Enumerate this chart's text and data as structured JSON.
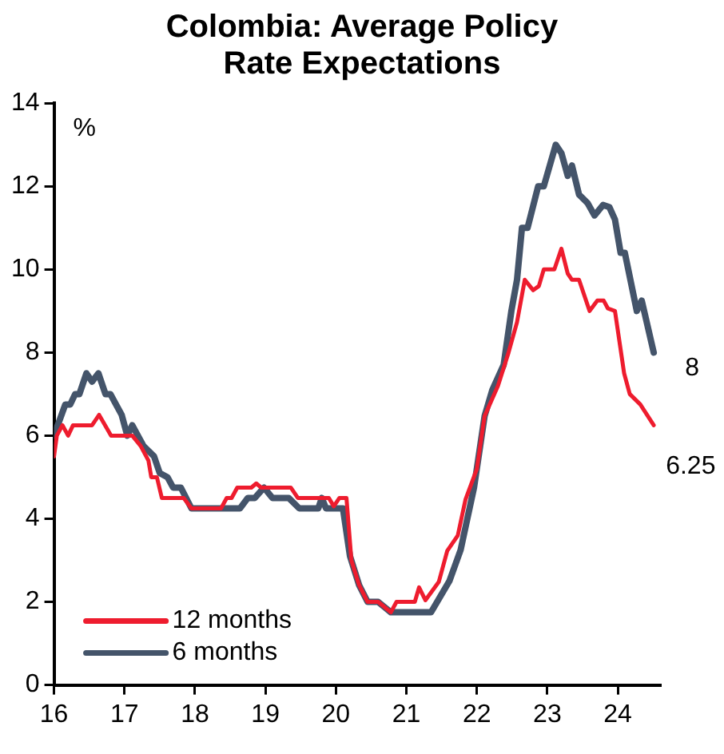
{
  "chart_data": {
    "type": "line",
    "title": "Colombia: Average Policy Rate Expectations",
    "ylabel": "%",
    "xlim": [
      16,
      24.6
    ],
    "xticks": [
      16,
      17,
      18,
      19,
      20,
      21,
      22,
      23,
      24
    ],
    "ylim": [
      0,
      14
    ],
    "yticks": [
      0,
      2,
      4,
      6,
      8,
      10,
      12,
      14
    ],
    "grid": false,
    "legend": "bottom left",
    "marker": "none",
    "line_style": "solid",
    "annotations": [
      {
        "text": "8",
        "x": 24.5,
        "y": 8
      },
      {
        "text": "6.25",
        "x": 24.5,
        "y": 6.25
      }
    ],
    "series": [
      {
        "name": "12 months",
        "color": "#ee1c2e",
        "x": [
          16.0,
          16.04,
          16.12,
          16.2,
          16.27,
          16.54,
          16.64,
          16.81,
          17.11,
          17.23,
          17.34,
          17.38,
          17.46,
          17.53,
          17.84,
          17.95,
          18.37,
          18.45,
          18.52,
          18.6,
          18.8,
          18.87,
          18.94,
          19.36,
          19.46,
          19.9,
          19.97,
          20.05,
          20.15,
          20.22,
          20.33,
          20.45,
          20.6,
          20.78,
          20.86,
          21.12,
          21.18,
          21.27,
          21.46,
          21.58,
          21.73,
          21.84,
          22.0,
          22.11,
          22.3,
          22.45,
          22.57,
          22.68,
          22.8,
          22.88,
          22.95,
          23.1,
          23.2,
          23.29,
          23.35,
          23.45,
          23.6,
          23.71,
          23.8,
          23.86,
          23.96,
          24.09,
          24.17,
          24.32,
          24.51
        ],
        "values": [
          5.5,
          6.0,
          6.25,
          6.0,
          6.25,
          6.25,
          6.5,
          6.0,
          6.0,
          5.75,
          5.4,
          5.0,
          5.0,
          4.5,
          4.5,
          4.25,
          4.25,
          4.5,
          4.5,
          4.75,
          4.75,
          4.85,
          4.75,
          4.75,
          4.5,
          4.5,
          4.3,
          4.5,
          4.5,
          3.0,
          2.4,
          2.0,
          2.0,
          1.75,
          2.0,
          2.0,
          2.35,
          2.04,
          2.48,
          3.23,
          3.6,
          4.47,
          5.2,
          6.47,
          7.2,
          8.0,
          8.73,
          9.75,
          9.5,
          9.6,
          10.0,
          10.0,
          10.5,
          9.9,
          9.75,
          9.75,
          9.0,
          9.25,
          9.25,
          9.06,
          9.0,
          7.5,
          7.0,
          6.75,
          6.25
        ]
      },
      {
        "name": "6 months",
        "color": "#44546a",
        "x": [
          16.0,
          16.16,
          16.23,
          16.3,
          16.36,
          16.46,
          16.54,
          16.63,
          16.73,
          16.8,
          16.96,
          17.04,
          17.11,
          17.27,
          17.42,
          17.5,
          17.61,
          17.69,
          17.8,
          17.95,
          18.64,
          18.75,
          18.85,
          18.98,
          19.1,
          19.33,
          19.48,
          19.75,
          19.8,
          19.86,
          20.1,
          20.2,
          20.33,
          20.45,
          20.6,
          20.78,
          21.35,
          21.61,
          21.77,
          21.96,
          22.11,
          22.22,
          22.38,
          22.49,
          22.57,
          22.64,
          22.72,
          22.87,
          22.95,
          23.12,
          23.2,
          23.29,
          23.35,
          23.45,
          23.57,
          23.67,
          23.79,
          23.88,
          23.96,
          24.04,
          24.1,
          24.27,
          24.34,
          24.51
        ],
        "values": [
          6.0,
          6.75,
          6.75,
          7.0,
          7.0,
          7.5,
          7.3,
          7.5,
          7.0,
          7.0,
          6.5,
          6.0,
          6.25,
          5.75,
          5.5,
          5.1,
          5.0,
          4.75,
          4.75,
          4.25,
          4.25,
          4.5,
          4.5,
          4.75,
          4.5,
          4.5,
          4.25,
          4.25,
          4.5,
          4.25,
          4.25,
          3.1,
          2.4,
          2.0,
          2.0,
          1.75,
          1.75,
          2.5,
          3.25,
          4.75,
          6.47,
          7.1,
          7.7,
          9.0,
          9.75,
          11.0,
          11.0,
          12.0,
          12.0,
          13.0,
          12.8,
          12.25,
          12.5,
          11.8,
          11.6,
          11.3,
          11.55,
          11.5,
          11.2,
          10.4,
          10.4,
          9.0,
          9.25,
          8.0
        ]
      }
    ]
  }
}
